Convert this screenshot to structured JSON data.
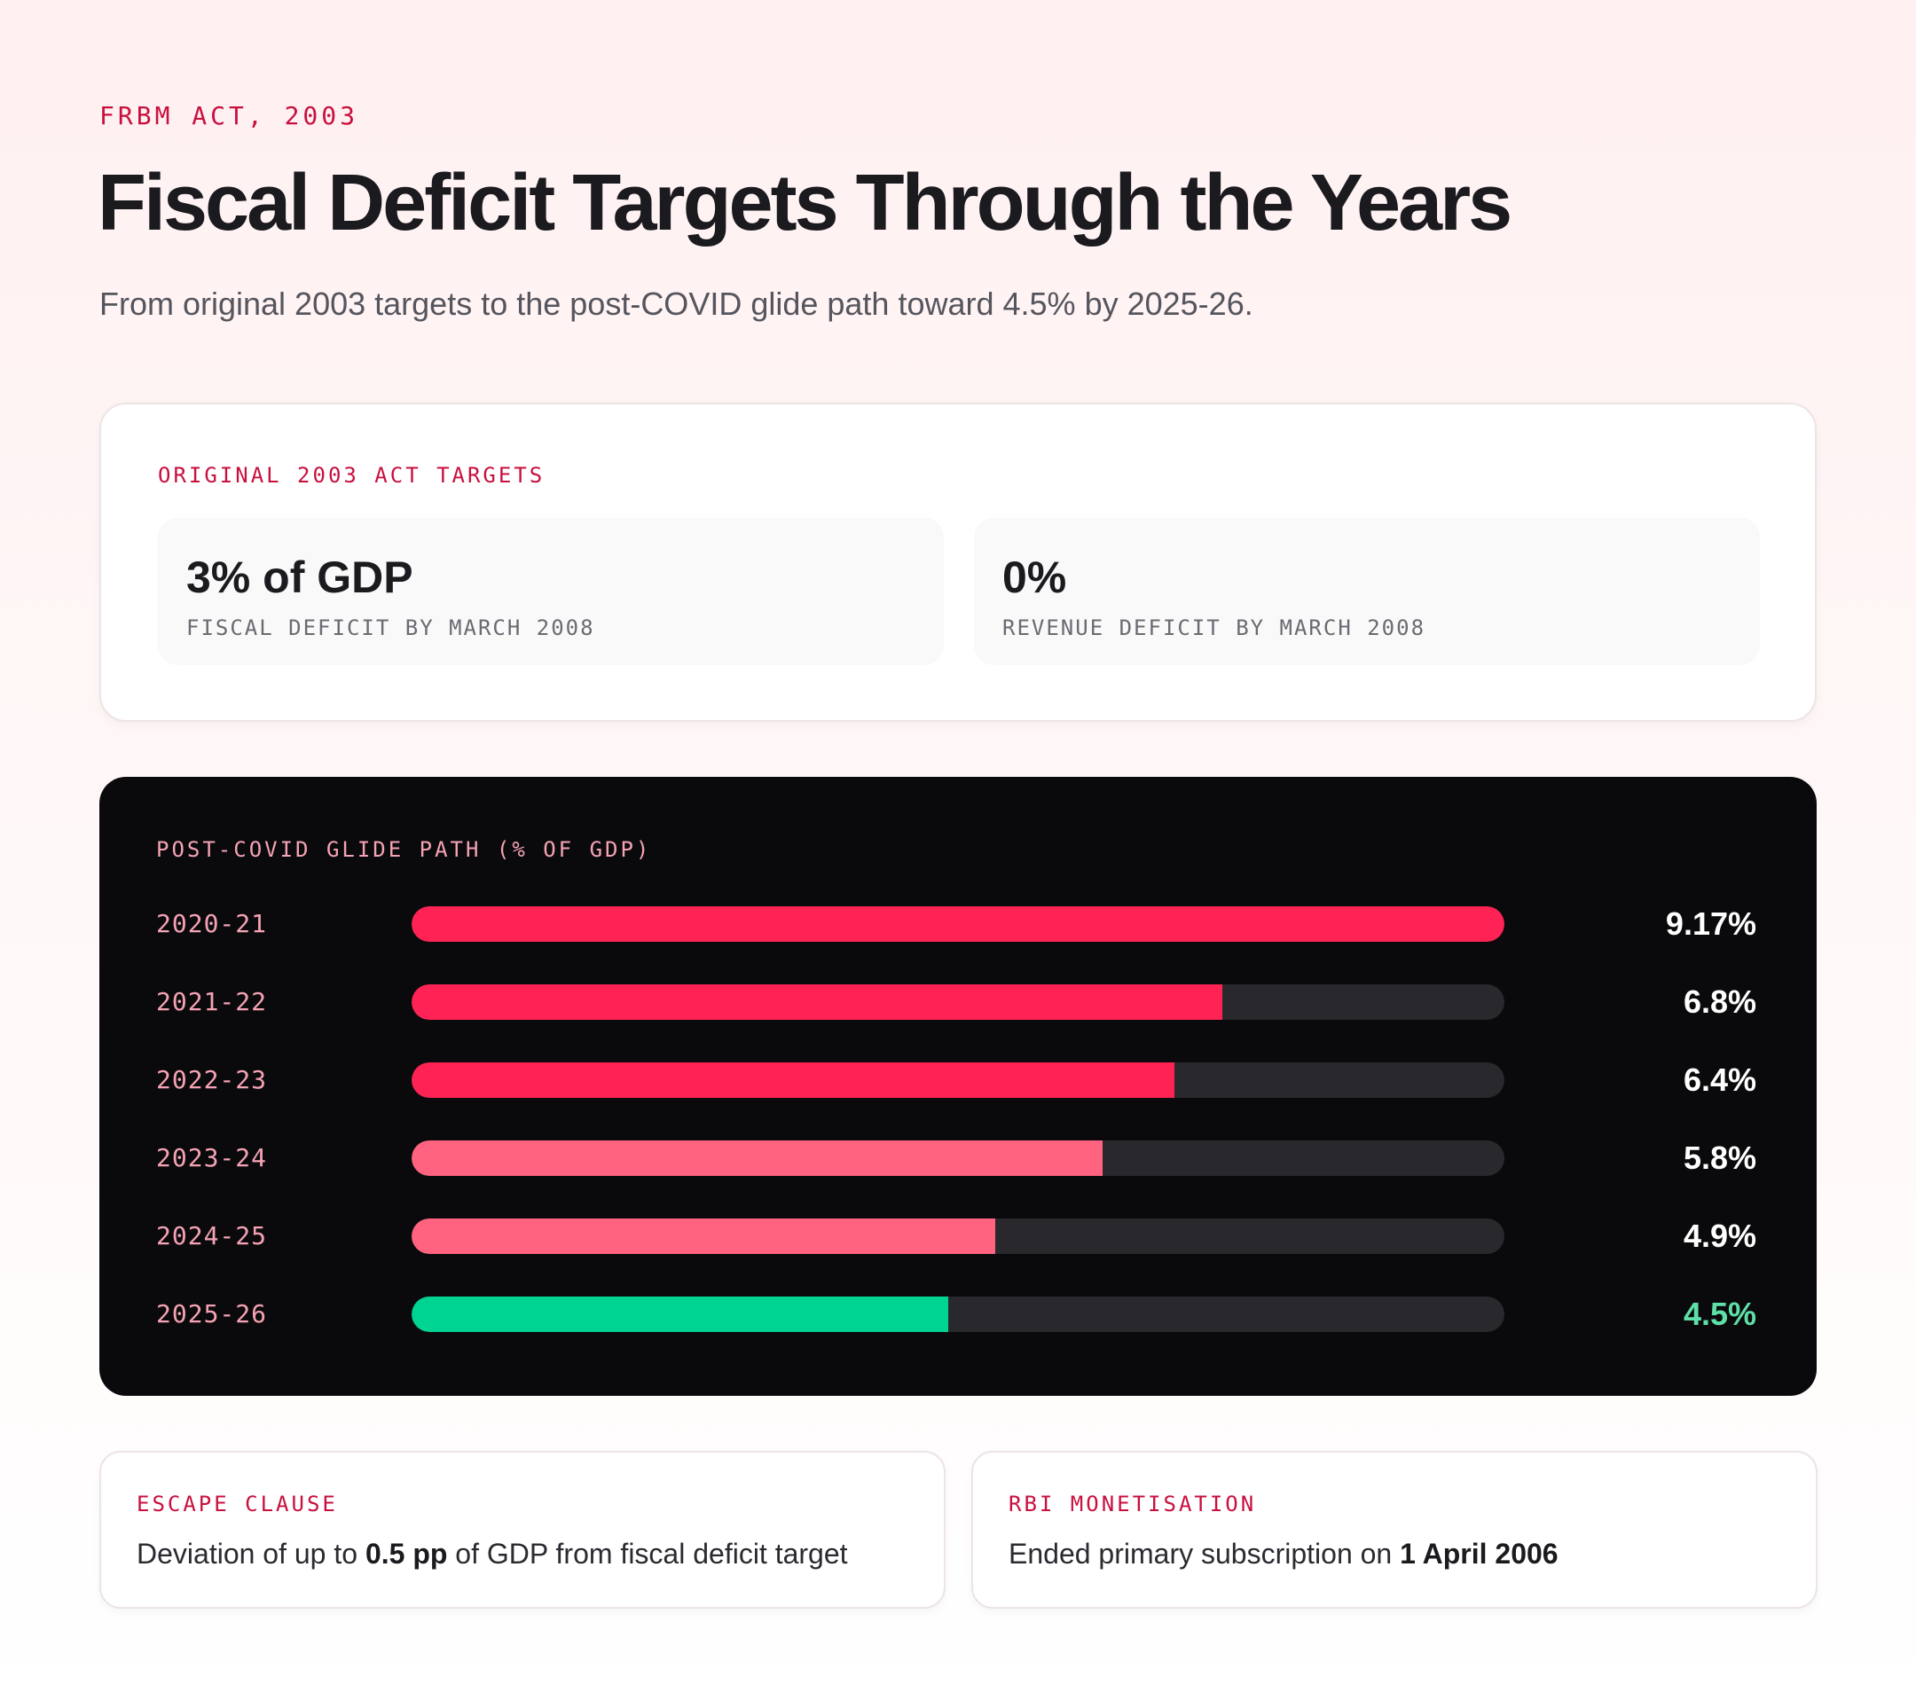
{
  "header": {
    "eyebrow": "FRBM ACT, 2003",
    "title": "Fiscal Deficit Targets Through the Years",
    "subtitle": "From original 2003 targets to the post-COVID glide path toward 4.5% by 2025-26."
  },
  "original_targets": {
    "label": "ORIGINAL 2003 ACT TARGETS",
    "stats": [
      {
        "value": "3% of GDP",
        "label": "FISCAL DEFICIT BY MARCH 2008"
      },
      {
        "value": "0%",
        "label": "REVENUE DEFICIT BY MARCH 2008"
      }
    ]
  },
  "chart_data": {
    "type": "bar",
    "orientation": "horizontal",
    "title": "POST-COVID GLIDE PATH (% OF GDP)",
    "categories": [
      "2020-21",
      "2021-22",
      "2022-23",
      "2023-24",
      "2024-25",
      "2025-26"
    ],
    "values": [
      9.17,
      6.8,
      6.4,
      5.8,
      4.9,
      4.5
    ],
    "value_labels": [
      "9.17%",
      "6.8%",
      "6.4%",
      "5.8%",
      "4.9%",
      "4.5%"
    ],
    "xlim": [
      0,
      9.17
    ],
    "grid": false,
    "colors": [
      "#ff2255",
      "#ff2255",
      "#ff2255",
      "#ff6380",
      "#ff6380",
      "#00d492"
    ],
    "value_colors": [
      "#ffffff",
      "#ffffff",
      "#ffffff",
      "#ffffff",
      "#ffffff",
      "#5ee0a8"
    ]
  },
  "notes": [
    {
      "label": "ESCAPE CLAUSE",
      "pre": "Deviation of up to ",
      "bold": "0.5 pp",
      "post": " of GDP from fiscal deficit target"
    },
    {
      "label": "RBI MONETISATION",
      "pre": "Ended primary subscription on ",
      "bold": "1 April 2006",
      "post": ""
    }
  ]
}
